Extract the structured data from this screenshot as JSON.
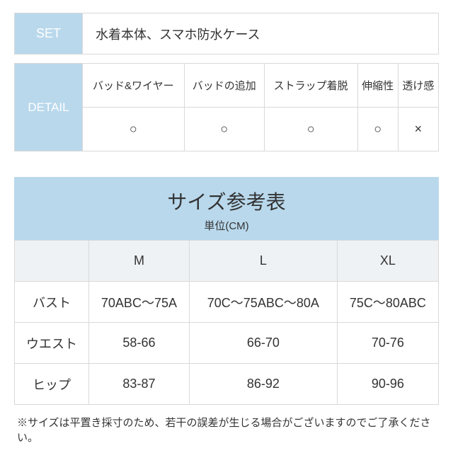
{
  "colors": {
    "header_bg": "#b9d8ec",
    "header_text": "#ffffff",
    "border": "#d9d9d9",
    "row_alt": "#eef2f5",
    "body_text": "#333333",
    "page_bg": "#ffffff"
  },
  "set_table": {
    "label": "SET",
    "value": "水着本体、スマホ防水ケース"
  },
  "detail_table": {
    "label": "DETAIL",
    "columns": [
      "バッド&ワイヤー",
      "バッドの追加",
      "ストラップ着脱",
      "伸縮性",
      "透け感"
    ],
    "symbols": [
      "○",
      "○",
      "○",
      "○",
      "×"
    ]
  },
  "size_table": {
    "title": "サイズ参考表",
    "subtitle": "単位(CM)",
    "col_headers": [
      "M",
      "L",
      "XL"
    ],
    "rows": [
      {
        "label": "バスト",
        "cells": [
          "70ABC〜75A",
          "70C〜75ABC〜80A",
          "75C〜80ABC"
        ]
      },
      {
        "label": "ウエスト",
        "cells": [
          "58-66",
          "66-70",
          "70-76"
        ]
      },
      {
        "label": "ヒップ",
        "cells": [
          "83-87",
          "86-92",
          "90-96"
        ]
      }
    ]
  },
  "note": "※サイズは平置き採寸のため、若干の誤差が生じる場合がございますのでご了承ください。"
}
